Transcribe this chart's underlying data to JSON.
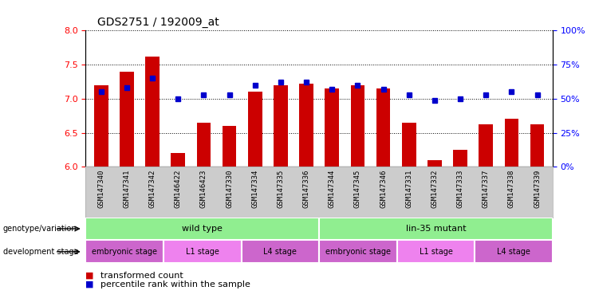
{
  "title": "GDS2751 / 192009_at",
  "samples": [
    "GSM147340",
    "GSM147341",
    "GSM147342",
    "GSM146422",
    "GSM146423",
    "GSM147330",
    "GSM147334",
    "GSM147335",
    "GSM147336",
    "GSM147344",
    "GSM147345",
    "GSM147346",
    "GSM147331",
    "GSM147332",
    "GSM147333",
    "GSM147337",
    "GSM147338",
    "GSM147339"
  ],
  "bar_values": [
    7.2,
    7.4,
    7.62,
    6.2,
    6.65,
    6.6,
    7.1,
    7.2,
    7.22,
    7.15,
    7.2,
    7.15,
    6.65,
    6.1,
    6.25,
    6.62,
    6.7,
    6.62
  ],
  "blue_values": [
    55,
    58,
    65,
    50,
    53,
    53,
    60,
    62,
    62,
    57,
    60,
    57,
    53,
    49,
    50,
    53,
    55,
    53
  ],
  "ylim_left": [
    6,
    8
  ],
  "ylim_right": [
    0,
    100
  ],
  "yticks_left": [
    6,
    6.5,
    7,
    7.5,
    8
  ],
  "yticks_right": [
    0,
    25,
    50,
    75,
    100
  ],
  "bar_color": "#cc0000",
  "blue_color": "#0000cc",
  "geno_groups": [
    {
      "name": "wild type",
      "start": 0,
      "end": 9,
      "color": "#90ee90"
    },
    {
      "name": "lin-35 mutant",
      "start": 9,
      "end": 18,
      "color": "#90ee90"
    }
  ],
  "stage_groups": [
    {
      "name": "embryonic stage",
      "start": 0,
      "end": 3,
      "color": "#cc66cc"
    },
    {
      "name": "L1 stage",
      "start": 3,
      "end": 6,
      "color": "#ee82ee"
    },
    {
      "name": "L4 stage",
      "start": 6,
      "end": 9,
      "color": "#cc66cc"
    },
    {
      "name": "embryonic stage",
      "start": 9,
      "end": 12,
      "color": "#cc66cc"
    },
    {
      "name": "L1 stage",
      "start": 12,
      "end": 15,
      "color": "#ee82ee"
    },
    {
      "name": "L4 stage",
      "start": 15,
      "end": 18,
      "color": "#cc66cc"
    }
  ],
  "xtick_bg_color": "#cccccc",
  "legend_items": [
    {
      "label": "transformed count",
      "color": "#cc0000"
    },
    {
      "label": "percentile rank within the sample",
      "color": "#0000cc"
    }
  ]
}
